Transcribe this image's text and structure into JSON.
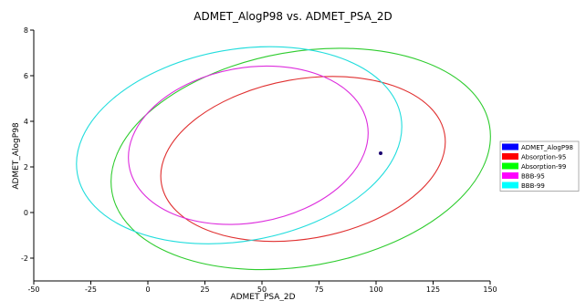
{
  "chart_data": {
    "type": "scatter",
    "title": "ADMET_AlogP98 vs. ADMET_PSA_2D",
    "xlabel": "ADMET_PSA_2D",
    "ylabel": "ADMET_AlogP98",
    "xlim": [
      -50,
      150
    ],
    "ylim": [
      -3,
      8
    ],
    "xticks": [
      "-50",
      "-25",
      "0",
      "25",
      "50",
      "75",
      "100",
      "125",
      "150"
    ],
    "yticks": [
      "-2",
      "0",
      "2",
      "4",
      "6",
      "8"
    ],
    "grid": false,
    "legend_position": "right",
    "points": [
      {
        "x": 102,
        "y": 2.6
      }
    ],
    "ellipses": [
      {
        "name": "Absorption-95",
        "color": "#e03030",
        "center": [
          68,
          2.35
        ],
        "rx": 63,
        "ry": 3.5,
        "angle": -10
      },
      {
        "name": "Absorption-99",
        "color": "#2ecc2e",
        "center": [
          67,
          2.35
        ],
        "rx": 84,
        "ry": 4.7,
        "angle": -10
      },
      {
        "name": "BBB-95",
        "color": "#dd2ddd",
        "center": [
          44,
          2.95
        ],
        "rx": 53,
        "ry": 3.4,
        "angle": -10
      },
      {
        "name": "BBB-99",
        "color": "#22dddd",
        "center": [
          40,
          2.95
        ],
        "rx": 72,
        "ry": 4.2,
        "angle": -10
      }
    ],
    "legend": [
      {
        "label": "ADMET_AlogP98",
        "color": "#0000ff"
      },
      {
        "label": "Absorption-95",
        "color": "#ff0000"
      },
      {
        "label": "Absorption-99",
        "color": "#00ff00"
      },
      {
        "label": "BBB-95",
        "color": "#ff00ff"
      },
      {
        "label": "BBB-99",
        "color": "#00ffff"
      }
    ],
    "point_color": "#1a0070"
  }
}
